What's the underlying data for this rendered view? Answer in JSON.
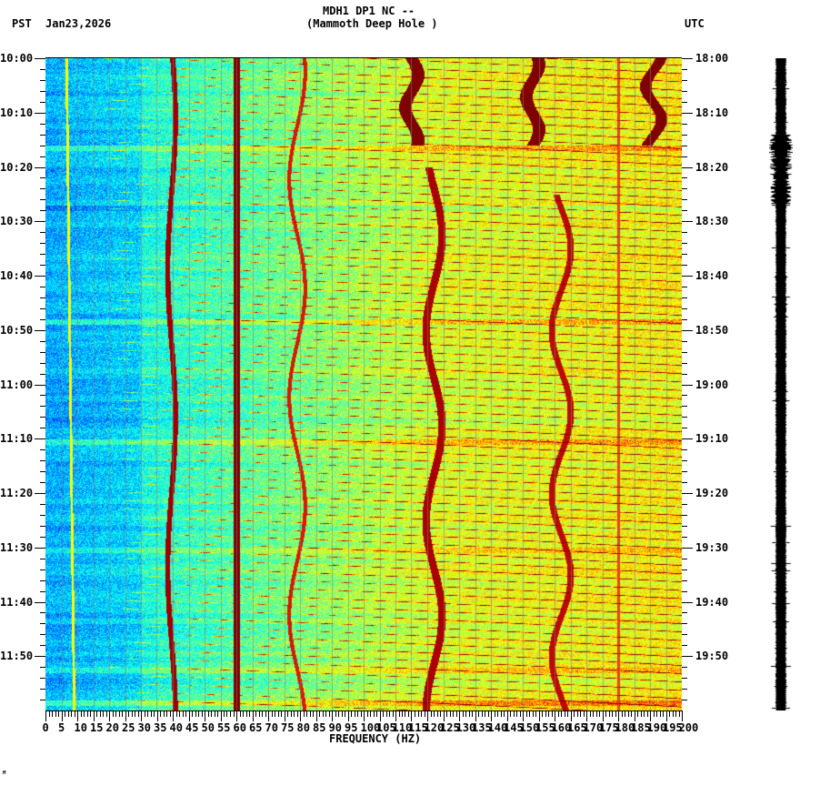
{
  "header": {
    "title_line1": "MDH1 DP1 NC --",
    "title_line2": "(Mammoth Deep Hole )",
    "left_tz": "PST",
    "date": "Jan23,2026",
    "right_tz": "UTC"
  },
  "xaxis": {
    "label": "FREQUENCY (HZ)",
    "ticks": [
      "0",
      "5",
      "10",
      "15",
      "20",
      "25",
      "30",
      "35",
      "40",
      "45",
      "50",
      "55",
      "60",
      "65",
      "70",
      "75",
      "80",
      "85",
      "90",
      "95",
      "100",
      "105",
      "110",
      "115",
      "120",
      "125",
      "130",
      "135",
      "140",
      "145",
      "150",
      "155",
      "160",
      "165",
      "170",
      "175",
      "180",
      "185",
      "190",
      "195",
      "200"
    ]
  },
  "yaxis_left": {
    "ticks": [
      "10:00",
      "10:10",
      "10:20",
      "10:30",
      "10:40",
      "10:50",
      "11:00",
      "11:10",
      "11:20",
      "11:30",
      "11:40",
      "11:50"
    ]
  },
  "yaxis_right": {
    "ticks": [
      "18:00",
      "18:10",
      "18:20",
      "18:30",
      "18:40",
      "18:50",
      "19:00",
      "19:10",
      "19:20",
      "19:30",
      "19:40",
      "19:50"
    ]
  },
  "footer_mark": "ᴹ",
  "colors": {
    "background": "#ffffff",
    "axis": "#000000",
    "gridline": "#808080",
    "colormap": [
      "#0000aa",
      "#0055ff",
      "#00aaff",
      "#00ffff",
      "#55ff99",
      "#aaff55",
      "#ffff00",
      "#ffaa00",
      "#ff3300",
      "#aa0000",
      "#800000"
    ]
  },
  "chart_data": {
    "type": "heatmap",
    "title": "MDH1 DP1 NC -- (Mammoth Deep Hole )",
    "subtitle": "Jan23,2026",
    "xlabel": "FREQUENCY (HZ)",
    "ylabel_left": "PST",
    "ylabel_right": "UTC",
    "xlim": [
      0,
      200
    ],
    "ylim_left": [
      "10:00",
      "12:00"
    ],
    "ylim_right": [
      "18:00",
      "20:00"
    ],
    "x_tick_step_hz": 5,
    "y_tick_step_min": 10,
    "grid": "vertical gridlines every 5 Hz",
    "features": [
      {
        "type": "constant_line",
        "freq_hz": 60,
        "intensity": "max",
        "desc": "60 Hz power-line tone"
      },
      {
        "type": "wandering_line",
        "freq_hz_approx": 39,
        "intensity": "high"
      },
      {
        "type": "wandering_line",
        "freq_hz_approx": 80,
        "intensity": "medium"
      },
      {
        "type": "wandering_line",
        "freq_hz_approx": 122,
        "intensity": "high"
      },
      {
        "type": "wandering_line",
        "freq_hz_approx": 162,
        "intensity": "high"
      },
      {
        "type": "wandering_line",
        "freq_hz_approx": 180,
        "intensity": "medium"
      },
      {
        "type": "gliding_tones",
        "desc": "repeated rising chirps from ~20 Hz to ~200 Hz, about every 2-3 minutes"
      },
      {
        "type": "thin_line",
        "freq_hz_approx": 7,
        "intensity": "low",
        "desc": "weak yellow line"
      }
    ],
    "background_level": {
      "0-35Hz": "low (blue)",
      "35-120Hz": "medium (cyan/green)",
      "120-200Hz": "medium-high (yellow)"
    },
    "seismogram": {
      "position": "right",
      "type": "trace",
      "amplitude": "constant with bursts near 18:15-18:25"
    }
  }
}
